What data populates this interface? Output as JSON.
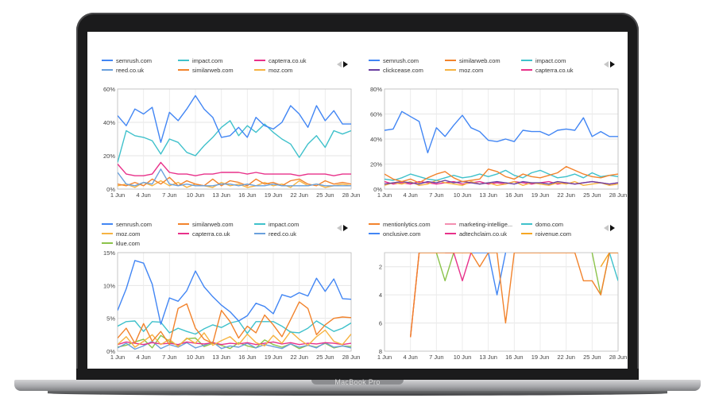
{
  "device": {
    "label": "MacBook Pro"
  },
  "chart_data": [
    {
      "type": "line",
      "y_format": "percent",
      "ylim": [
        0,
        60
      ],
      "y_ticks": [
        0,
        20,
        40,
        60
      ],
      "x_ticks": [
        "1 Jun",
        "4 Jun",
        "7 Jun",
        "10 Jun",
        "13 Jun",
        "16 Jun",
        "19 Jun",
        "22 Jun",
        "25 Jun",
        "28 Jun"
      ],
      "legend": {
        "placement": "top",
        "has_arrows": true
      },
      "grid": true,
      "series": [
        {
          "name": "semrush.com",
          "color": "#4286f4",
          "values": [
            44,
            38,
            48,
            45,
            49,
            28,
            46,
            41,
            48,
            56,
            48,
            43,
            31,
            32,
            37,
            31,
            43,
            38,
            36,
            40,
            50,
            45,
            37,
            50,
            41,
            47,
            39,
            39
          ]
        },
        {
          "name": "impact.com",
          "color": "#3fc1cb",
          "values": [
            16,
            35,
            32,
            31,
            29,
            21,
            30,
            28,
            22,
            20,
            26,
            31,
            37,
            41,
            32,
            38,
            34,
            39,
            34,
            30,
            27,
            19,
            27,
            32,
            25,
            35,
            33,
            35
          ]
        },
        {
          "name": "capterra.co.uk",
          "color": "#e8318a",
          "values": [
            15,
            9,
            8,
            8,
            9,
            16,
            10,
            9,
            9,
            8,
            9,
            9,
            10,
            10,
            10,
            9,
            10,
            9,
            9,
            9,
            9,
            8,
            9,
            9,
            9,
            8,
            9,
            9
          ]
        },
        {
          "name": "reed.co.uk",
          "color": "#6aa0dc",
          "values": [
            10,
            3,
            2,
            4,
            3,
            12,
            3,
            2,
            3,
            2,
            2,
            2,
            3,
            3,
            2,
            3,
            2,
            2,
            3,
            2,
            2,
            2,
            2,
            3,
            2,
            2,
            2,
            2
          ]
        },
        {
          "name": "similarweb.com",
          "color": "#f2832c",
          "values": [
            3,
            2,
            4,
            2,
            6,
            3,
            7,
            2,
            5,
            3,
            2,
            6,
            2,
            5,
            4,
            2,
            6,
            3,
            4,
            2,
            5,
            6,
            3,
            2,
            5,
            3,
            4,
            3
          ]
        },
        {
          "name": "moz.com",
          "color": "#f6b342",
          "values": [
            2,
            3,
            1,
            4,
            2,
            5,
            2,
            4,
            1,
            3,
            2,
            1,
            4,
            2,
            3,
            1,
            2,
            4,
            2,
            3,
            1,
            5,
            2,
            3,
            1,
            2,
            3,
            2
          ]
        }
      ]
    },
    {
      "type": "line",
      "y_format": "percent",
      "ylim": [
        0,
        80
      ],
      "y_ticks": [
        0,
        20,
        40,
        60,
        80
      ],
      "x_ticks": [
        "1 Jun",
        "4 Jun",
        "7 Jun",
        "10 Jun",
        "13 Jun",
        "16 Jun",
        "19 Jun",
        "22 Jun",
        "25 Jun",
        "28 Jun"
      ],
      "legend": {
        "placement": "top",
        "has_arrows": true
      },
      "grid": true,
      "series": [
        {
          "name": "semrush.com",
          "color": "#4286f4",
          "values": [
            47,
            48,
            62,
            58,
            54,
            29,
            49,
            42,
            51,
            59,
            49,
            46,
            39,
            38,
            40,
            38,
            47,
            46,
            46,
            43,
            47,
            48,
            47,
            57,
            42,
            46,
            42,
            42
          ]
        },
        {
          "name": "similarweb.com",
          "color": "#f2832c",
          "values": [
            12,
            8,
            6,
            8,
            5,
            9,
            12,
            14,
            9,
            6,
            7,
            8,
            16,
            14,
            10,
            8,
            12,
            10,
            9,
            11,
            13,
            18,
            15,
            12,
            10,
            9,
            11,
            12
          ]
        },
        {
          "name": "impact.com",
          "color": "#3fc1cb",
          "values": [
            8,
            7,
            9,
            12,
            10,
            8,
            7,
            9,
            11,
            9,
            10,
            12,
            10,
            12,
            15,
            11,
            9,
            13,
            15,
            12,
            9,
            10,
            12,
            9,
            13,
            10,
            11,
            10
          ]
        },
        {
          "name": "clickcease.com",
          "color": "#6b3fa0",
          "values": [
            4,
            5,
            6,
            5,
            4,
            6,
            5,
            7,
            5,
            6,
            5,
            4,
            5,
            6,
            5,
            4,
            6,
            5,
            5,
            4,
            6,
            5,
            4,
            5,
            6,
            5,
            4,
            5
          ]
        },
        {
          "name": "moz.com",
          "color": "#f6b342",
          "values": [
            3,
            5,
            4,
            6,
            3,
            4,
            7,
            5,
            4,
            3,
            6,
            4,
            5,
            3,
            4,
            6,
            3,
            5,
            4,
            3,
            5,
            4,
            6,
            3,
            4,
            5,
            3,
            4
          ]
        },
        {
          "name": "capterra.co.uk",
          "color": "#e8318a",
          "values": [
            6,
            4,
            5,
            4,
            6,
            5,
            4,
            5,
            6,
            4,
            5,
            6,
            4,
            5,
            4,
            6,
            5,
            4,
            5,
            6,
            4,
            5,
            4,
            5,
            6,
            5,
            4,
            5
          ]
        }
      ]
    },
    {
      "type": "line",
      "y_format": "percent",
      "ylim": [
        0,
        15
      ],
      "y_ticks": [
        0,
        5,
        10,
        15
      ],
      "x_ticks": [
        "1 Jun",
        "4 Jun",
        "7 Jun",
        "10 Jun",
        "13 Jun",
        "16 Jun",
        "19 Jun",
        "22 Jun",
        "25 Jun",
        "28 Jun"
      ],
      "legend": {
        "placement": "top",
        "has_arrows": true
      },
      "grid": true,
      "series": [
        {
          "name": "semrush.com",
          "color": "#4286f4",
          "values": [
            6.2,
            9.5,
            13.8,
            13.4,
            10.2,
            4.1,
            8.1,
            7.6,
            9.2,
            12.2,
            9.8,
            8.3,
            7.0,
            6.0,
            4.6,
            5.4,
            7.3,
            6.8,
            5.7,
            8.6,
            8.2,
            8.9,
            8.4,
            11.1,
            9.1,
            11.0,
            8.0,
            7.9
          ]
        },
        {
          "name": "similarweb.com",
          "color": "#f2832c",
          "values": [
            2.0,
            3.5,
            1.2,
            4.2,
            1.5,
            3.0,
            1.0,
            6.5,
            7.2,
            3.5,
            1.8,
            1.2,
            6.2,
            4.5,
            2.0,
            3.8,
            2.8,
            5.5,
            4.0,
            2.2,
            4.8,
            7.5,
            6.5,
            2.5,
            4.0,
            5.0,
            5.2,
            5.1
          ]
        },
        {
          "name": "impact.com",
          "color": "#3fc1cb",
          "values": [
            3.8,
            4.5,
            4.6,
            3.0,
            4.5,
            4.4,
            2.8,
            3.5,
            3.0,
            2.6,
            3.4,
            4.0,
            3.6,
            4.3,
            4.6,
            2.7,
            4.5,
            4.5,
            4.5,
            3.8,
            2.9,
            2.8,
            3.5,
            4.6,
            3.8,
            3.0,
            3.5,
            4.3
          ]
        },
        {
          "name": "moz.com",
          "color": "#f6b342",
          "values": [
            1.0,
            2.2,
            0.6,
            1.5,
            2.5,
            1.0,
            1.8,
            0.7,
            2.0,
            1.2,
            2.8,
            0.9,
            1.6,
            2.2,
            1.0,
            2.6,
            1.3,
            0.8,
            2.4,
            1.2,
            3.0,
            1.8,
            0.9,
            2.2,
            3.2,
            1.5,
            1.0,
            2.6
          ]
        },
        {
          "name": "capterra.co.uk",
          "color": "#e8318a",
          "values": [
            1.0,
            1.4,
            1.2,
            1.0,
            1.3,
            1.1,
            1.2,
            1.0,
            1.4,
            1.2,
            1.1,
            1.3,
            1.0,
            1.2,
            1.1,
            1.3,
            1.0,
            1.2,
            1.4,
            1.1,
            1.3,
            1.0,
            1.2,
            1.1,
            1.3,
            1.2,
            1.0,
            1.2
          ]
        },
        {
          "name": "reed.co.uk",
          "color": "#6aa0dc",
          "values": [
            0.5,
            1.2,
            0.3,
            0.8,
            1.5,
            0.4,
            1.0,
            0.6,
            1.3,
            0.5,
            0.9,
            1.4,
            0.4,
            0.8,
            0.6,
            1.2,
            0.5,
            1.0,
            0.7,
            0.4,
            1.1,
            0.6,
            0.9,
            0.5,
            1.3,
            0.6,
            0.8,
            0.5
          ]
        },
        {
          "name": "klue.com",
          "color": "#8bc34a",
          "values": [
            0.6,
            0.9,
            1.4,
            1.8,
            0.5,
            2.4,
            1.5,
            0.8,
            1.9,
            2.0,
            0.7,
            1.2,
            0.9,
            0.4,
            1.3,
            0.8,
            0.5,
            1.7,
            1.0,
            0.6,
            1.1,
            0.4,
            0.9,
            0.6,
            1.2,
            0.5,
            0.8,
            0.7
          ]
        }
      ]
    },
    {
      "type": "line",
      "y_format": "rank",
      "y_reversed": true,
      "ylim": [
        1,
        8
      ],
      "y_ticks": [
        2,
        4,
        6,
        8
      ],
      "x_ticks": [
        "1 Jun",
        "4 Jun",
        "7 Jun",
        "10 Jun",
        "13 Jun",
        "16 Jun",
        "19 Jun",
        "22 Jun",
        "25 Jun",
        "28 Jun"
      ],
      "legend": {
        "placement": "top",
        "has_arrows": true
      },
      "grid": true,
      "series": [
        {
          "name": "mentionlytics.com",
          "color": "#f2832c",
          "values": [
            null,
            null,
            null,
            7,
            1,
            1,
            1,
            1,
            1,
            1,
            1,
            2,
            1,
            1,
            6,
            1,
            1,
            1,
            1,
            1,
            1,
            1,
            1,
            3,
            3,
            4,
            1,
            1
          ]
        },
        {
          "name": "marketing-intellige...",
          "color": "#f48fb1",
          "values": [
            null,
            null,
            null,
            null,
            null,
            null,
            null,
            null,
            1,
            null,
            1,
            null,
            null,
            null,
            null,
            null,
            null,
            null,
            null,
            null,
            null,
            null,
            null,
            null,
            null,
            null,
            null,
            null
          ]
        },
        {
          "name": "domo.com",
          "color": "#3fc1cb",
          "values": [
            null,
            null,
            null,
            null,
            null,
            null,
            null,
            null,
            null,
            null,
            null,
            null,
            null,
            null,
            null,
            null,
            null,
            null,
            null,
            null,
            null,
            null,
            null,
            null,
            null,
            null,
            1,
            3
          ]
        },
        {
          "name": "onclusive.com",
          "color": "#4286f4",
          "values": [
            null,
            null,
            null,
            null,
            null,
            null,
            null,
            null,
            null,
            null,
            1,
            1,
            1,
            4,
            1,
            null,
            null,
            null,
            null,
            null,
            null,
            null,
            null,
            null,
            null,
            null,
            null,
            null
          ]
        },
        {
          "name": "adtechclaim.co.uk",
          "color": "#e8318a",
          "values": [
            null,
            null,
            null,
            null,
            null,
            null,
            null,
            1,
            1,
            3,
            1,
            null,
            null,
            null,
            null,
            null,
            null,
            null,
            null,
            null,
            null,
            null,
            null,
            null,
            null,
            null,
            null,
            null
          ]
        },
        {
          "name": "roivenue.com",
          "color": "#f6a623",
          "values": [
            null,
            null,
            null,
            null,
            null,
            null,
            null,
            null,
            null,
            null,
            null,
            null,
            null,
            null,
            null,
            null,
            null,
            null,
            null,
            null,
            null,
            null,
            1,
            null,
            null,
            2,
            1,
            1
          ]
        },
        {
          "name": "",
          "color": "#d8363a",
          "values": [
            null,
            null,
            null,
            7,
            1,
            null,
            null,
            null,
            null,
            null,
            null,
            null,
            null,
            null,
            null,
            null,
            null,
            null,
            null,
            null,
            null,
            null,
            null,
            null,
            null,
            null,
            null,
            null
          ]
        },
        {
          "name": "",
          "color": "#8bc34a",
          "values": [
            null,
            null,
            null,
            null,
            null,
            null,
            1,
            3,
            1,
            null,
            null,
            null,
            null,
            null,
            null,
            null,
            null,
            null,
            null,
            null,
            null,
            null,
            null,
            null,
            1,
            4,
            1,
            null
          ]
        }
      ]
    }
  ]
}
